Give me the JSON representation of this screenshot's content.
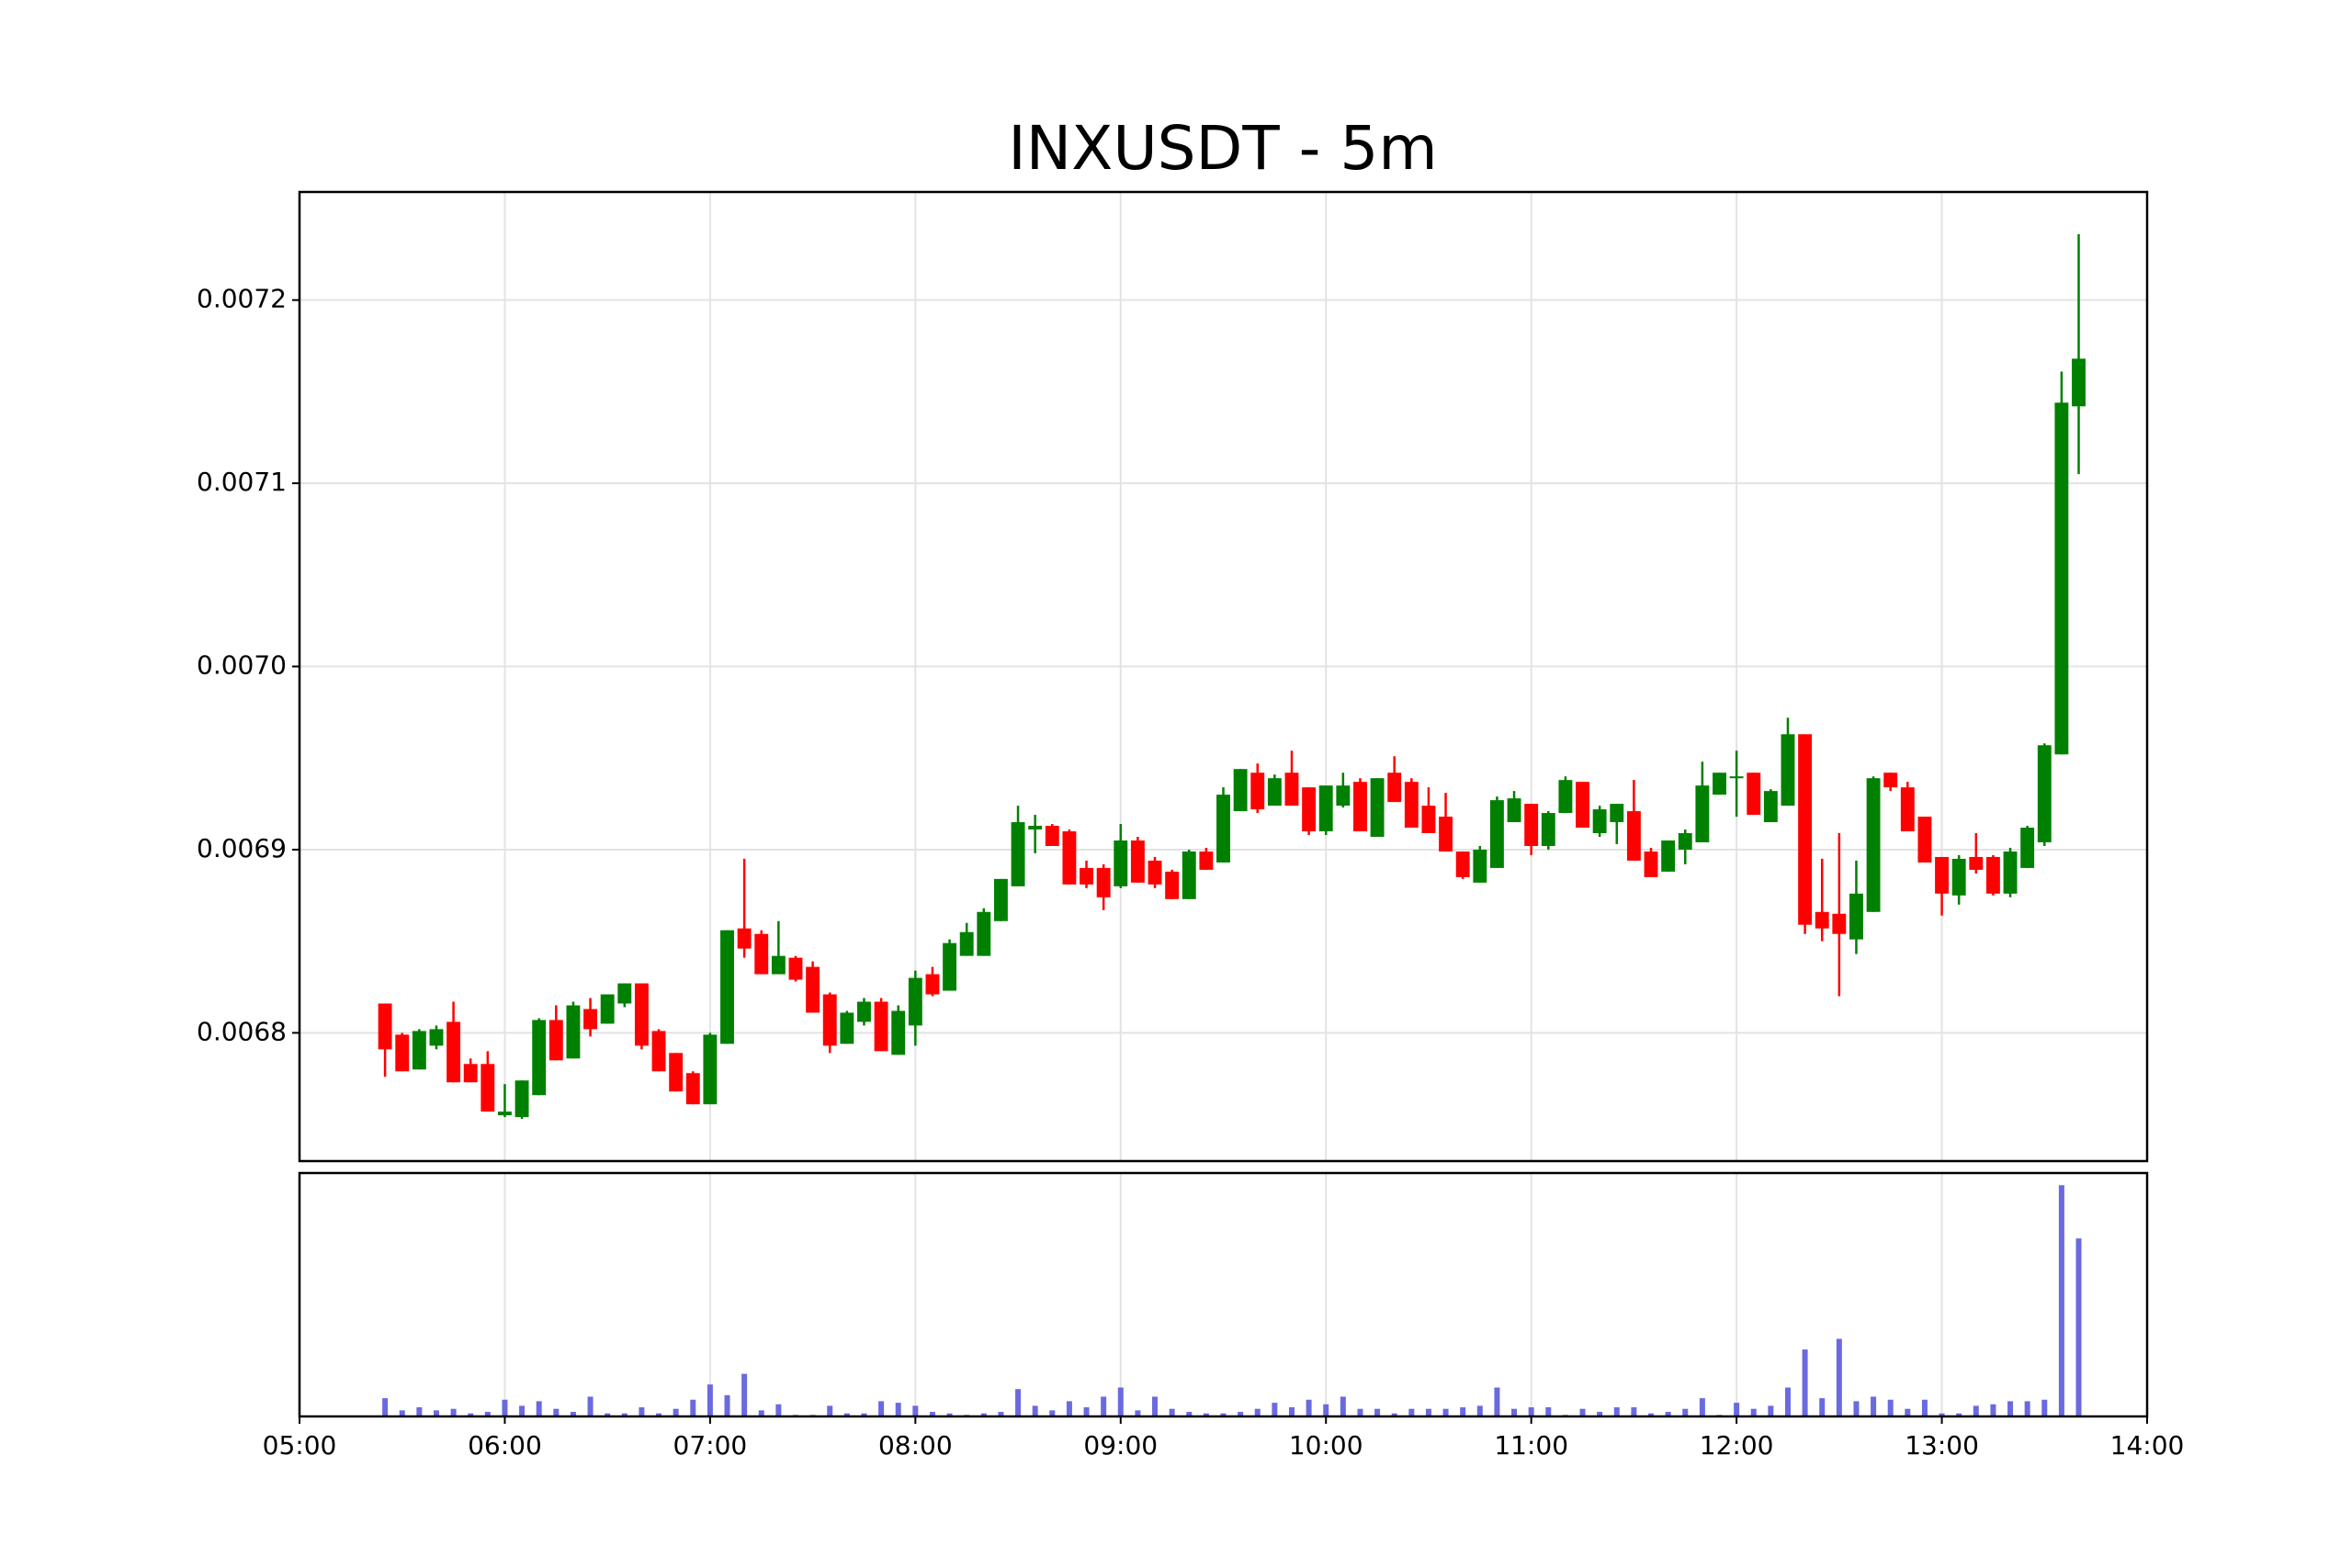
{
  "chart_data": {
    "type": "candlestick",
    "title": "INXUSDT - 5m",
    "x": [
      "05:25",
      "05:30",
      "05:35",
      "05:40",
      "05:45",
      "05:50",
      "05:55",
      "06:00",
      "06:05",
      "06:10",
      "06:15",
      "06:20",
      "06:25",
      "06:30",
      "06:35",
      "06:40",
      "06:45",
      "06:50",
      "06:55",
      "07:00",
      "07:05",
      "07:10",
      "07:15",
      "07:20",
      "07:25",
      "07:30",
      "07:35",
      "07:40",
      "07:45",
      "07:50",
      "07:55",
      "08:00",
      "08:05",
      "08:10",
      "08:15",
      "08:20",
      "08:25",
      "08:30",
      "08:35",
      "08:40",
      "08:45",
      "08:50",
      "08:55",
      "09:00",
      "09:05",
      "09:10",
      "09:15",
      "09:20",
      "09:25",
      "09:30",
      "09:35",
      "09:40",
      "09:45",
      "09:50",
      "09:55",
      "10:00",
      "10:05",
      "10:10",
      "10:15",
      "10:20",
      "10:25",
      "10:30",
      "10:35",
      "10:40",
      "10:45",
      "10:50",
      "10:55",
      "11:00",
      "11:05",
      "11:10",
      "11:15",
      "11:20",
      "11:25",
      "11:30",
      "11:35",
      "11:40",
      "11:45",
      "11:50",
      "11:55",
      "12:00",
      "12:05",
      "12:10",
      "12:15",
      "12:20",
      "12:25",
      "12:30",
      "12:35",
      "12:40",
      "12:45",
      "12:50",
      "12:55",
      "13:00",
      "13:05",
      "13:10",
      "13:15",
      "13:20",
      "13:25",
      "13:30",
      "13:35",
      "13:40"
    ],
    "open": [
      0.006816,
      0.006799,
      0.00678,
      0.006793,
      0.006806,
      0.006783,
      0.006783,
      0.006755,
      0.006754,
      0.006766,
      0.006807,
      0.006786,
      0.006813,
      0.006805,
      0.006816,
      0.006827,
      0.006801,
      0.006789,
      0.006778,
      0.006761,
      0.006794,
      0.006857,
      0.006854,
      0.006832,
      0.006841,
      0.006836,
      0.006821,
      0.006794,
      0.006806,
      0.006817,
      0.006788,
      0.006804,
      0.006832,
      0.006823,
      0.006842,
      0.006842,
      0.006861,
      0.00688,
      0.006911,
      0.006913,
      0.00691,
      0.00689,
      0.00689,
      0.00688,
      0.006905,
      0.006894,
      0.006888,
      0.006873,
      0.006899,
      0.006893,
      0.006921,
      0.006942,
      0.006924,
      0.006942,
      0.006934,
      0.00691,
      0.006924,
      0.006937,
      0.006907,
      0.006942,
      0.006937,
      0.006924,
      0.006918,
      0.006899,
      0.006882,
      0.00689,
      0.006915,
      0.006925,
      0.006902,
      0.00692,
      0.006937,
      0.006909,
      0.006915,
      0.006921,
      0.006899,
      0.006888,
      0.0069,
      0.006904,
      0.00693,
      0.006939,
      0.006942,
      0.006915,
      0.006924,
      0.006963,
      0.006866,
      0.006865,
      0.006851,
      0.006866,
      0.006942,
      0.006934,
      0.006918,
      0.006896,
      0.006875,
      0.006896,
      0.006896,
      0.006876,
      0.00689,
      0.006904,
      0.006952,
      0.007142
    ],
    "high": [
      0.006816,
      0.0068,
      0.006802,
      0.006804,
      0.006817,
      0.006786,
      0.00679,
      0.006772,
      0.006774,
      0.006808,
      0.006815,
      0.006817,
      0.006819,
      0.006821,
      0.006827,
      0.006827,
      0.006802,
      0.006789,
      0.006779,
      0.0068,
      0.006856,
      0.006895,
      0.006856,
      0.006861,
      0.006842,
      0.006839,
      0.006822,
      0.006812,
      0.006819,
      0.006819,
      0.006815,
      0.006834,
      0.006836,
      0.006851,
      0.00686,
      0.006868,
      0.006884,
      0.006924,
      0.006919,
      0.006914,
      0.006911,
      0.006894,
      0.006892,
      0.006914,
      0.006907,
      0.006896,
      0.006889,
      0.0069,
      0.006901,
      0.006934,
      0.006944,
      0.006947,
      0.006941,
      0.006954,
      0.006934,
      0.006935,
      0.006942,
      0.006939,
      0.006939,
      0.006951,
      0.006939,
      0.006934,
      0.006931,
      0.006899,
      0.006902,
      0.006929,
      0.006932,
      0.006925,
      0.006921,
      0.00694,
      0.006937,
      0.006924,
      0.006925,
      0.006938,
      0.006901,
      0.006905,
      0.006911,
      0.006948,
      0.006942,
      0.006954,
      0.006942,
      0.006933,
      0.006972,
      0.006963,
      0.006895,
      0.006909,
      0.006894,
      0.00694,
      0.006942,
      0.006937,
      0.006918,
      0.006896,
      0.006897,
      0.006909,
      0.006897,
      0.006901,
      0.006913,
      0.006958,
      0.007161,
      0.007236
    ],
    "low": [
      0.006776,
      0.006779,
      0.00678,
      0.006791,
      0.006773,
      0.006773,
      0.006757,
      0.006754,
      0.006753,
      0.006766,
      0.006785,
      0.006786,
      0.006798,
      0.006805,
      0.006814,
      0.006791,
      0.006779,
      0.006768,
      0.006761,
      0.006761,
      0.006794,
      0.006841,
      0.006832,
      0.006832,
      0.006828,
      0.006811,
      0.006789,
      0.006794,
      0.006804,
      0.00679,
      0.006788,
      0.006793,
      0.00682,
      0.006823,
      0.006842,
      0.006842,
      0.006861,
      0.00688,
      0.006898,
      0.006902,
      0.006881,
      0.006879,
      0.006867,
      0.006879,
      0.006882,
      0.006879,
      0.006873,
      0.006873,
      0.006889,
      0.006893,
      0.006921,
      0.00692,
      0.006924,
      0.006924,
      0.006908,
      0.006908,
      0.006923,
      0.00691,
      0.006907,
      0.006926,
      0.006912,
      0.006909,
      0.006899,
      0.006884,
      0.006882,
      0.00689,
      0.006915,
      0.006897,
      0.0069,
      0.00692,
      0.006912,
      0.006907,
      0.006903,
      0.006894,
      0.006885,
      0.006888,
      0.006892,
      0.006904,
      0.00693,
      0.006918,
      0.006919,
      0.006915,
      0.006924,
      0.006854,
      0.00685,
      0.00682,
      0.006843,
      0.006866,
      0.006932,
      0.00691,
      0.006893,
      0.006864,
      0.00687,
      0.006887,
      0.006875,
      0.006874,
      0.00689,
      0.006902,
      0.006952,
      0.007105
    ],
    "close": [
      0.006791,
      0.006779,
      0.006801,
      0.006802,
      0.006773,
      0.006773,
      0.006757,
      0.006757,
      0.006774,
      0.006807,
      0.006785,
      0.006815,
      0.006802,
      0.006821,
      0.006827,
      0.006793,
      0.006779,
      0.006768,
      0.006761,
      0.006799,
      0.006856,
      0.006846,
      0.006832,
      0.006842,
      0.006829,
      0.006811,
      0.006793,
      0.006811,
      0.006817,
      0.00679,
      0.006812,
      0.00683,
      0.006821,
      0.006849,
      0.006855,
      0.006866,
      0.006884,
      0.006915,
      0.006913,
      0.006902,
      0.006881,
      0.006881,
      0.006874,
      0.006905,
      0.006882,
      0.006881,
      0.006873,
      0.006899,
      0.006889,
      0.00693,
      0.006944,
      0.006922,
      0.006939,
      0.006924,
      0.00691,
      0.006935,
      0.006935,
      0.00691,
      0.006939,
      0.006926,
      0.006912,
      0.006909,
      0.006899,
      0.006885,
      0.0069,
      0.006927,
      0.006928,
      0.006902,
      0.00692,
      0.006938,
      0.006912,
      0.006922,
      0.006925,
      0.006894,
      0.006885,
      0.006905,
      0.006909,
      0.006935,
      0.006942,
      0.00694,
      0.006919,
      0.006932,
      0.006963,
      0.006859,
      0.006857,
      0.006854,
      0.006876,
      0.006939,
      0.006934,
      0.00691,
      0.006893,
      0.006876,
      0.006895,
      0.006889,
      0.006876,
      0.006899,
      0.006912,
      0.006957,
      0.007144,
      0.007168
    ],
    "volume": [
      12,
      4,
      6,
      4,
      5,
      2,
      3,
      11,
      7,
      10,
      5,
      3,
      13,
      2,
      2,
      6,
      2,
      5,
      11,
      21,
      14,
      28,
      4,
      8,
      1,
      1,
      7,
      2,
      2,
      10,
      9,
      7,
      3,
      2,
      1,
      2,
      3,
      18,
      7,
      4,
      10,
      6,
      13,
      19,
      4,
      13,
      5,
      3,
      2,
      2,
      3,
      5,
      9,
      6,
      11,
      8,
      13,
      5,
      5,
      2,
      5,
      5,
      5,
      6,
      7,
      19,
      5,
      6,
      6,
      1,
      5,
      3,
      6,
      6,
      2,
      3,
      5,
      12,
      1,
      9,
      5,
      7,
      19,
      44,
      12,
      51,
      10,
      13,
      11,
      5,
      11,
      2,
      2,
      7,
      8,
      10,
      10,
      11,
      152,
      117
    ],
    "up_color": "#008000",
    "down_color": "#ff0000",
    "volume_color": "#6a6ae0",
    "xlim": [
      "05:00",
      "14:00"
    ],
    "xticks": [
      "05:00",
      "06:00",
      "07:00",
      "08:00",
      "09:00",
      "10:00",
      "11:00",
      "12:00",
      "13:00",
      "14:00"
    ],
    "ylim": [
      0.00673,
      0.007259
    ],
    "yticks": [
      0.0068,
      0.0069,
      {
        "value": 0.007,
        "label": "0.0070"
      },
      0.0071,
      0.0072
    ],
    "volume_ylim": [
      0,
      160
    ],
    "grid": true
  }
}
